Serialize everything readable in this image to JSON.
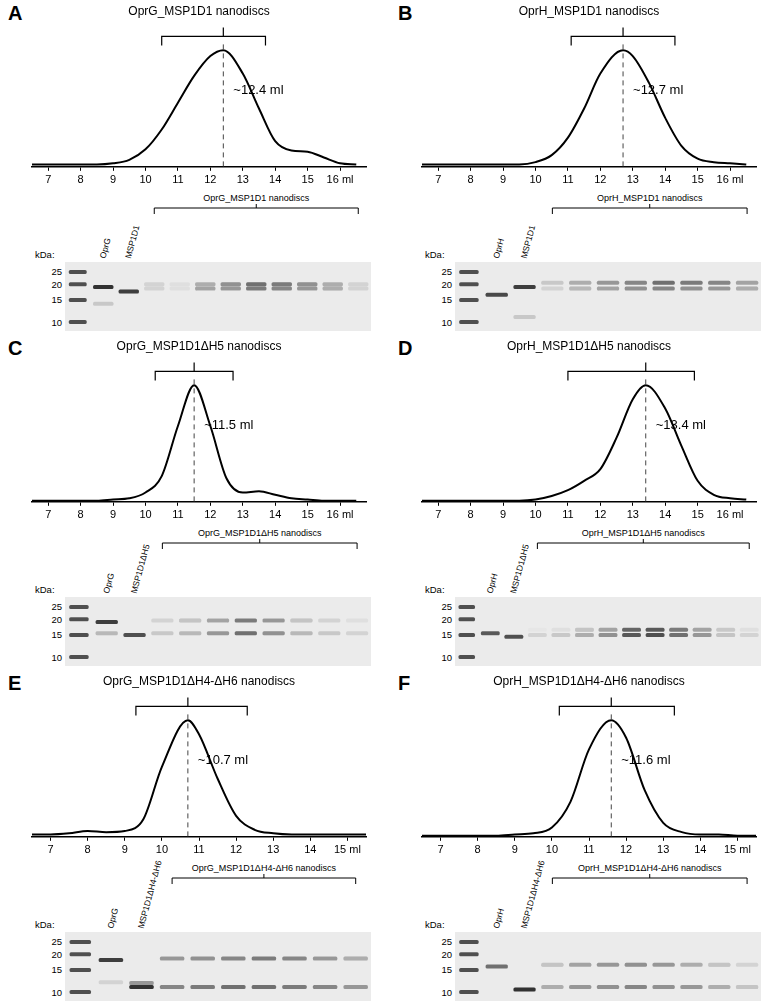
{
  "chart_data": [
    {
      "type": "line",
      "panel": "A",
      "title": "OprG_MSP1D1 nanodiscs",
      "color": "#000000",
      "tick_labels": "x",
      "grid": false,
      "x": [
        6.5,
        7,
        7.5,
        8,
        8.5,
        9,
        9.5,
        10,
        10.5,
        11,
        11.5,
        12,
        12.4,
        13,
        13.5,
        14,
        14.5,
        15,
        15.5,
        16,
        16.5
      ],
      "values": [
        2,
        2,
        2,
        2,
        2,
        3,
        6,
        15,
        32,
        55,
        78,
        95,
        100,
        80,
        50,
        22,
        14,
        13,
        8,
        3,
        2
      ],
      "xlim": [
        6.5,
        16.8
      ],
      "ylim": [
        0,
        105
      ],
      "xticks": [
        7,
        8,
        9,
        10,
        11,
        12,
        13,
        14,
        15,
        {
          "value": 16,
          "label": "16 ml"
        }
      ],
      "bracket": [
        10.5,
        13.7
      ],
      "annotations": [
        {
          "x": 12.4,
          "label": "~12.4 ml"
        }
      ]
    },
    {
      "type": "line",
      "panel": "B",
      "title": "OprH_MSP1D1 nanodiscs",
      "color": "#000000",
      "tick_labels": "x",
      "grid": false,
      "x": [
        6.5,
        7,
        7.5,
        8,
        8.5,
        9,
        9.5,
        10,
        10.5,
        11,
        11.5,
        12,
        12.7,
        13,
        13.5,
        14,
        14.5,
        15,
        15.5,
        16,
        16.5
      ],
      "values": [
        2,
        2,
        2,
        2,
        2,
        2,
        2,
        4,
        10,
        25,
        50,
        80,
        100,
        95,
        72,
        42,
        18,
        7,
        4,
        3,
        2
      ],
      "xlim": [
        6.5,
        16.8
      ],
      "ylim": [
        0,
        105
      ],
      "xticks": [
        7,
        8,
        9,
        10,
        11,
        12,
        13,
        14,
        15,
        {
          "value": 16,
          "label": "16 ml"
        }
      ],
      "bracket": [
        11.1,
        14.3
      ],
      "annotations": [
        {
          "x": 12.7,
          "label": "~12.7 ml"
        }
      ]
    },
    {
      "type": "line",
      "panel": "C",
      "title": "OprG_MSP1D1ΔH5 nanodiscs",
      "color": "#000000",
      "tick_labels": "x",
      "grid": false,
      "x": [
        6.5,
        7,
        7.5,
        8,
        8.5,
        9,
        9.5,
        10,
        10.5,
        11,
        11.5,
        12,
        12.5,
        13,
        13.5,
        14,
        14.5,
        15,
        15.5,
        16,
        16.5
      ],
      "values": [
        1,
        1,
        1,
        1,
        1,
        2,
        3,
        8,
        22,
        65,
        100,
        65,
        20,
        8,
        9,
        6,
        3,
        2,
        1,
        1,
        1
      ],
      "xlim": [
        6.5,
        16.8
      ],
      "ylim": [
        0,
        105
      ],
      "xticks": [
        7,
        8,
        9,
        10,
        11,
        12,
        13,
        14,
        15,
        {
          "value": 16,
          "label": "16 ml"
        }
      ],
      "bracket": [
        10.3,
        12.7
      ],
      "annotations": [
        {
          "x": 11.5,
          "label": "~11.5 ml"
        }
      ]
    },
    {
      "type": "line",
      "panel": "D",
      "title": "OprH_MSP1D1ΔH5 nanodiscs",
      "color": "#000000",
      "tick_labels": "x",
      "grid": false,
      "x": [
        6.5,
        7,
        7.5,
        8,
        8.5,
        9,
        9.5,
        10,
        10.5,
        11,
        11.5,
        12,
        12.5,
        13,
        13.4,
        14,
        14.5,
        15,
        15.5,
        16,
        16.5
      ],
      "values": [
        1,
        1,
        1,
        1,
        1,
        1,
        1,
        2,
        5,
        10,
        18,
        28,
        55,
        88,
        100,
        80,
        48,
        18,
        6,
        3,
        2
      ],
      "xlim": [
        6.5,
        16.8
      ],
      "ylim": [
        0,
        105
      ],
      "xticks": [
        7,
        8,
        9,
        10,
        11,
        12,
        13,
        14,
        15,
        {
          "value": 16,
          "label": "16 ml"
        }
      ],
      "bracket": [
        11,
        14.9
      ],
      "annotations": [
        {
          "x": 13.4,
          "label": "~13.4 ml"
        }
      ]
    },
    {
      "type": "line",
      "panel": "E",
      "title": "OprG_MSP1D1ΔH4-ΔH6 nanodiscs",
      "color": "#000000",
      "tick_labels": "x",
      "grid": false,
      "x": [
        6.5,
        7,
        7.5,
        8,
        8.5,
        9,
        9.5,
        10,
        10.7,
        11,
        11.5,
        12,
        12.5,
        13,
        13.5,
        14,
        14.5,
        15,
        15.5
      ],
      "values": [
        2,
        2,
        3,
        5,
        4,
        5,
        15,
        60,
        100,
        88,
        50,
        18,
        6,
        3,
        2,
        2,
        2,
        2,
        2
      ],
      "xlim": [
        6.5,
        15.5
      ],
      "ylim": [
        0,
        105
      ],
      "xticks": [
        7,
        8,
        9,
        10,
        11,
        12,
        13,
        14,
        {
          "value": 15,
          "label": "15 ml"
        }
      ],
      "bracket": [
        9.3,
        12.3
      ],
      "annotations": [
        {
          "x": 10.7,
          "label": "~10.7 ml"
        }
      ]
    },
    {
      "type": "line",
      "panel": "F",
      "title": "OprH_MSP1D1ΔH4-ΔH6 nanodiscs",
      "color": "#000000",
      "tick_labels": "x",
      "grid": false,
      "x": [
        6.5,
        7,
        7.5,
        8,
        8.5,
        9,
        9.5,
        10,
        10.5,
        11,
        11.6,
        12,
        12.5,
        13,
        13.5,
        14,
        14.5,
        15,
        15.5
      ],
      "values": [
        1,
        1,
        1,
        1,
        1,
        2,
        3,
        8,
        30,
        75,
        100,
        85,
        40,
        12,
        4,
        2,
        2,
        1,
        1
      ],
      "xlim": [
        6.5,
        15.5
      ],
      "ylim": [
        0,
        105
      ],
      "xticks": [
        7,
        8,
        9,
        10,
        11,
        12,
        13,
        14,
        {
          "value": 15,
          "label": "15 ml"
        }
      ],
      "bracket": [
        10.2,
        13.3
      ],
      "annotations": [
        {
          "x": 11.6,
          "label": "~11.6 ml"
        }
      ]
    }
  ],
  "gels": [
    {
      "kda_label": "kDa:",
      "markers": [
        25,
        20,
        15,
        10
      ],
      "kda_range": [
        8.5,
        30
      ],
      "sample_lanes": [
        {
          "label": "OprG",
          "bands": [
            [
              19,
              0.9
            ],
            [
              14,
              0.15
            ]
          ]
        },
        {
          "label": "MSP1D1",
          "bands": [
            [
              17.5,
              0.85
            ]
          ]
        }
      ],
      "group_label": "OprG_MSP1D1 nanodiscs",
      "fraction_lanes": [
        [
          [
            20,
            0.1
          ],
          [
            18.5,
            0.1
          ]
        ],
        [
          [
            20,
            0.05
          ],
          [
            18.5,
            0.05
          ]
        ],
        [
          [
            20,
            0.3
          ],
          [
            18.5,
            0.35
          ]
        ],
        [
          [
            20,
            0.45
          ],
          [
            18.5,
            0.4
          ]
        ],
        [
          [
            20,
            0.6
          ],
          [
            18.5,
            0.55
          ]
        ],
        [
          [
            20,
            0.55
          ],
          [
            18.5,
            0.5
          ]
        ],
        [
          [
            20,
            0.45
          ],
          [
            18.5,
            0.4
          ]
        ],
        [
          [
            20,
            0.3
          ],
          [
            18.5,
            0.3
          ]
        ],
        [
          [
            20,
            0.1
          ],
          [
            18.5,
            0.1
          ]
        ]
      ]
    },
    {
      "kda_label": "kDa:",
      "markers": [
        25,
        20,
        15,
        10
      ],
      "kda_range": [
        8.5,
        30
      ],
      "sample_lanes": [
        {
          "label": "OprH",
          "bands": [
            [
              16.5,
              0.8
            ]
          ]
        },
        {
          "label": "MSP1D1",
          "bands": [
            [
              19,
              0.85
            ],
            [
              11,
              0.15
            ]
          ]
        }
      ],
      "group_label": "OprH_MSP1D1 nanodiscs",
      "fraction_lanes": [
        [
          [
            20.5,
            0.15
          ],
          [
            18.5,
            0.1
          ]
        ],
        [
          [
            20.5,
            0.3
          ],
          [
            18.5,
            0.25
          ]
        ],
        [
          [
            20.5,
            0.4
          ],
          [
            18.5,
            0.35
          ]
        ],
        [
          [
            20.5,
            0.5
          ],
          [
            18.5,
            0.45
          ]
        ],
        [
          [
            20.5,
            0.6
          ],
          [
            18.5,
            0.5
          ]
        ],
        [
          [
            20.5,
            0.55
          ],
          [
            18.5,
            0.45
          ]
        ],
        [
          [
            20.5,
            0.5
          ],
          [
            18.5,
            0.4
          ]
        ],
        [
          [
            20.5,
            0.35
          ],
          [
            18.5,
            0.3
          ]
        ]
      ]
    },
    {
      "kda_label": "kDa:",
      "markers": [
        25,
        20,
        15,
        10
      ],
      "kda_range": [
        8.5,
        30
      ],
      "sample_lanes": [
        {
          "label": "OprG",
          "bands": [
            [
              19,
              0.85
            ],
            [
              15.5,
              0.25
            ]
          ]
        },
        {
          "label": "MSP1D1ΔH5",
          "bands": [
            [
              15,
              0.75
            ]
          ]
        }
      ],
      "group_label": "OprG_MSP1D1ΔH5 nanodiscs",
      "fraction_lanes": [
        [
          [
            19.5,
            0.1
          ],
          [
            15.5,
            0.15
          ]
        ],
        [
          [
            19.5,
            0.2
          ],
          [
            15.5,
            0.25
          ]
        ],
        [
          [
            19.5,
            0.35
          ],
          [
            15.5,
            0.4
          ]
        ],
        [
          [
            19.5,
            0.55
          ],
          [
            15.5,
            0.6
          ]
        ],
        [
          [
            19.5,
            0.4
          ],
          [
            15.5,
            0.45
          ]
        ],
        [
          [
            19.5,
            0.2
          ],
          [
            15.5,
            0.25
          ]
        ],
        [
          [
            19.5,
            0.1
          ],
          [
            15.5,
            0.15
          ]
        ],
        [
          [
            19.5,
            0.05
          ],
          [
            15.5,
            0.1
          ]
        ]
      ]
    },
    {
      "kda_label": "kDa:",
      "markers": [
        25,
        20,
        15,
        10
      ],
      "kda_range": [
        8.5,
        30
      ],
      "sample_lanes": [
        {
          "label": "OprH",
          "bands": [
            [
              15.5,
              0.7
            ]
          ]
        },
        {
          "label": "MSP1D1ΔH5",
          "bands": [
            [
              14.5,
              0.75
            ]
          ]
        }
      ],
      "group_label": "OprH_MSP1D1ΔH5 nanodiscs",
      "fraction_lanes": [
        [
          [
            16.5,
            0.02
          ],
          [
            15,
            0.1
          ]
        ],
        [
          [
            16.5,
            0.05
          ],
          [
            15,
            0.15
          ]
        ],
        [
          [
            16.5,
            0.2
          ],
          [
            15,
            0.3
          ]
        ],
        [
          [
            16.5,
            0.35
          ],
          [
            15,
            0.45
          ]
        ],
        [
          [
            16.5,
            0.65
          ],
          [
            15,
            0.7
          ]
        ],
        [
          [
            16.5,
            0.7
          ],
          [
            15,
            0.75
          ]
        ],
        [
          [
            16.5,
            0.55
          ],
          [
            15,
            0.6
          ]
        ],
        [
          [
            16.5,
            0.35
          ],
          [
            15,
            0.4
          ]
        ],
        [
          [
            16.5,
            0.15
          ],
          [
            15,
            0.2
          ]
        ],
        [
          [
            16.5,
            0.05
          ],
          [
            15,
            0.1
          ]
        ]
      ]
    },
    {
      "kda_label": "kDa:",
      "markers": [
        25,
        20,
        15,
        10
      ],
      "kda_range": [
        8.5,
        30
      ],
      "sample_lanes": [
        {
          "label": "OprG",
          "bands": [
            [
              18,
              0.85
            ],
            [
              12,
              0.1
            ]
          ]
        },
        {
          "label": "MSP1D1ΔH4-ΔH6",
          "bands": [
            [
              11,
              0.9
            ],
            [
              11.8,
              0.4
            ]
          ]
        }
      ],
      "group_label": "OprG_MSP1D1ΔH4-ΔH6 nanodiscs",
      "fraction_lanes": [
        [
          [
            18.5,
            0.4
          ],
          [
            11,
            0.5
          ]
        ],
        [
          [
            18.5,
            0.45
          ],
          [
            11,
            0.55
          ]
        ],
        [
          [
            18.5,
            0.5
          ],
          [
            11,
            0.6
          ]
        ],
        [
          [
            18.5,
            0.55
          ],
          [
            11,
            0.6
          ]
        ],
        [
          [
            18.5,
            0.5
          ],
          [
            11,
            0.55
          ]
        ],
        [
          [
            18.5,
            0.4
          ],
          [
            11,
            0.5
          ]
        ],
        [
          [
            18.5,
            0.3
          ],
          [
            11,
            0.4
          ]
        ]
      ]
    },
    {
      "kda_label": "kDa:",
      "markers": [
        25,
        20,
        15,
        10
      ],
      "kda_range": [
        8.5,
        30
      ],
      "sample_lanes": [
        {
          "label": "OprH",
          "bands": [
            [
              16,
              0.6
            ]
          ]
        },
        {
          "label": "MSP1D1ΔH4-ΔH6",
          "bands": [
            [
              10.5,
              0.9
            ]
          ]
        }
      ],
      "group_label": "OprH_MSP1D1ΔH4-ΔH6 nanodiscs",
      "fraction_lanes": [
        [
          [
            16.5,
            0.2
          ],
          [
            11,
            0.3
          ]
        ],
        [
          [
            16.5,
            0.35
          ],
          [
            11,
            0.4
          ]
        ],
        [
          [
            16.5,
            0.4
          ],
          [
            11,
            0.45
          ]
        ],
        [
          [
            16.5,
            0.45
          ],
          [
            11,
            0.5
          ]
        ],
        [
          [
            16.5,
            0.4
          ],
          [
            11,
            0.45
          ]
        ],
        [
          [
            16.5,
            0.3
          ],
          [
            11,
            0.4
          ]
        ],
        [
          [
            16.5,
            0.2
          ],
          [
            11,
            0.3
          ]
        ],
        [
          [
            16.5,
            0.1
          ],
          [
            11,
            0.2
          ]
        ]
      ]
    }
  ]
}
